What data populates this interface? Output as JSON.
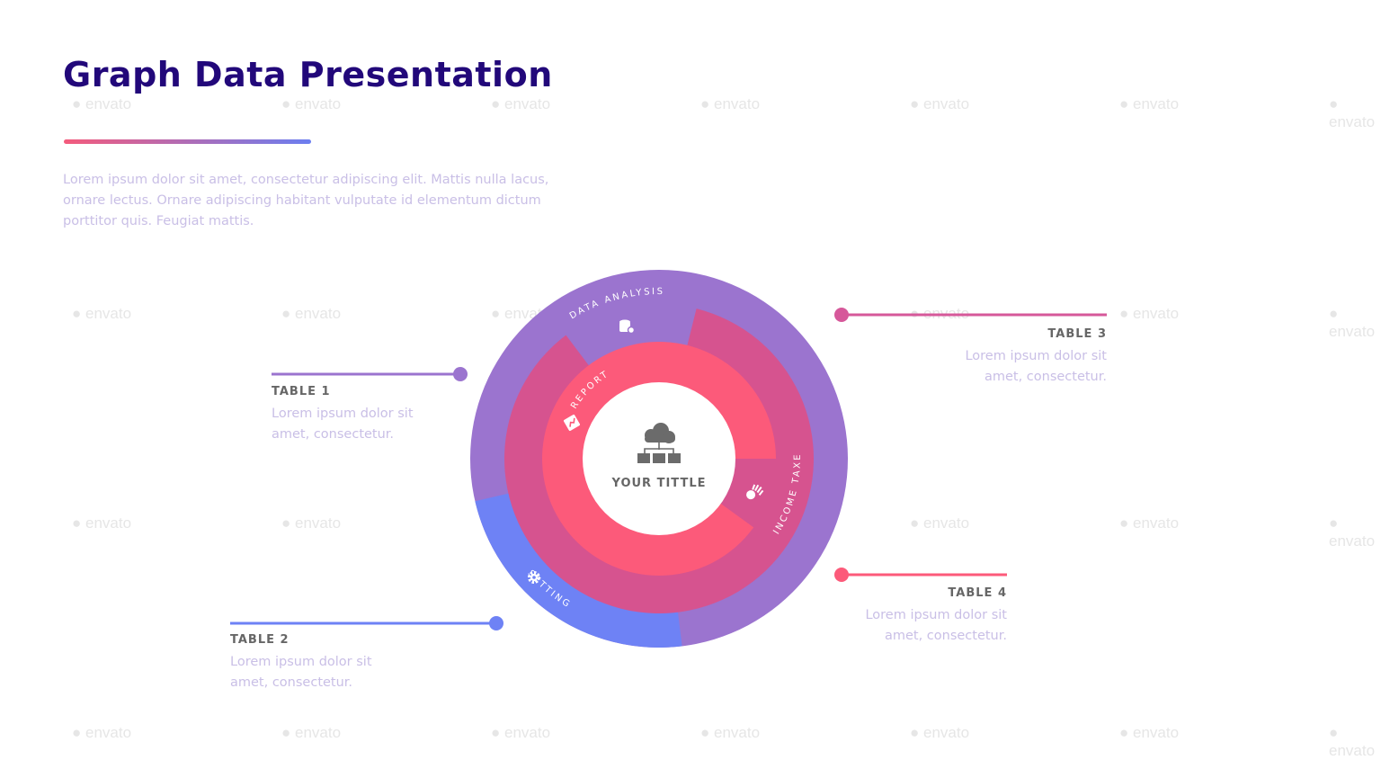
{
  "watermark": "envato",
  "header": {
    "title": "Graph Data Presentation",
    "intro": "Lorem ipsum dolor sit amet, consectetur adipiscing elit. Mattis nulla lacus, ornare lectus. Ornare adipiscing habitant vulputate id elementum dictum porttitor quis. Feugiat mattis."
  },
  "diagram": {
    "center_title": "YOUR TITTLE",
    "center_icon": "cloud-network-icon",
    "segments": [
      {
        "label": "DATA ANALYSIS",
        "icon": "database-gear-icon",
        "color": "#9b74cf"
      },
      {
        "label": "SETTING",
        "icon": "gear-icon",
        "color": "#6e82f5"
      },
      {
        "label": "INCOME TAXE",
        "icon": "money-hand-icon",
        "color": "#d6538f"
      },
      {
        "label": "REPORT",
        "icon": "report-icon",
        "color": "#fc5a7a"
      }
    ]
  },
  "tables": [
    {
      "title": "TABLE 1",
      "text": "Lorem ipsum dolor sit amet, consectetur.",
      "color": "#9b74cf"
    },
    {
      "title": "TABLE 2",
      "text": "Lorem ipsum dolor sit amet, consectetur.",
      "color": "#6e82f5"
    },
    {
      "title": "TABLE 3",
      "text": "Lorem ipsum dolor sit amet, consectetur.",
      "color": "#d6589a"
    },
    {
      "title": "TABLE 4",
      "text": "Lorem ipsum dolor sit amet, consectetur.",
      "color": "#fc5a7a"
    }
  ]
}
